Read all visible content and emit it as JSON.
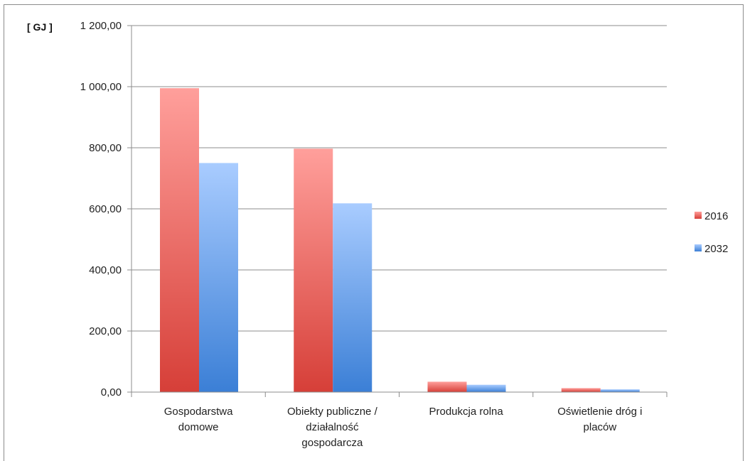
{
  "chart_data": {
    "type": "bar",
    "ylabel": "[ GJ ]",
    "ylim": [
      0,
      1200
    ],
    "yticks": [
      "0,00",
      "200,00",
      "400,00",
      "600,00",
      "800,00",
      "1 000,00",
      "1 200,00"
    ],
    "grid": true,
    "legend_position": "right",
    "categories": [
      [
        "Gospodarstwa",
        "domowe"
      ],
      [
        "Obiekty publiczne /",
        "działalność",
        "gospodarcza"
      ],
      [
        "Produkcja  rolna"
      ],
      [
        "Oświetlenie dróg i",
        "placów"
      ]
    ],
    "series": [
      {
        "name": "2016",
        "values": [
          995,
          797,
          34,
          13
        ],
        "color_top": "#ff9f9b",
        "color_bottom": "#d63f38"
      },
      {
        "name": "2032",
        "values": [
          750,
          618,
          24,
          9
        ],
        "color_top": "#a9ccff",
        "color_bottom": "#3b7fd6"
      }
    ]
  }
}
